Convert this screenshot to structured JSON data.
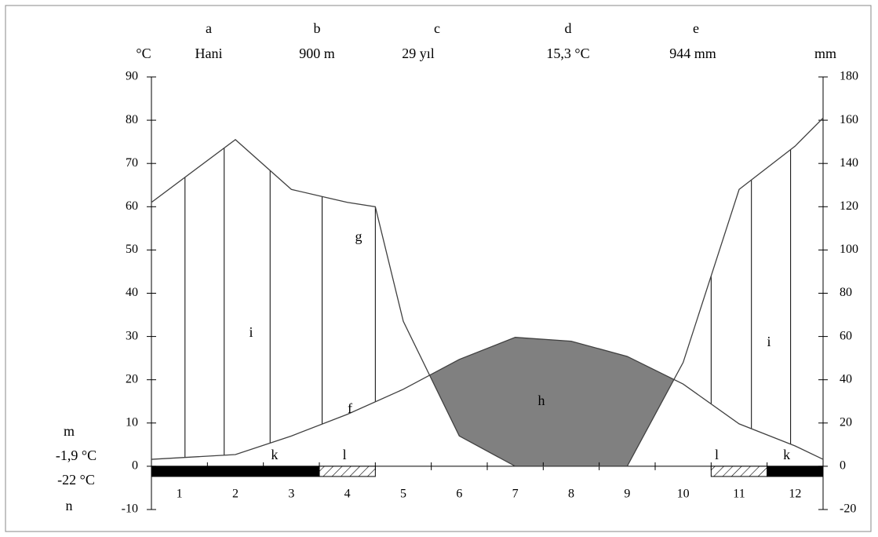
{
  "chart_data": {
    "type": "climate",
    "header": {
      "letters": [
        "a",
        "b",
        "c",
        "d",
        "e"
      ],
      "values": [
        "Hani",
        "900 m",
        "29 yıl",
        "15,3 °C",
        "944 mm"
      ]
    },
    "ylabel": "°C",
    "y2label": "mm",
    "xlim": [
      0.5,
      12.5
    ],
    "xticks": [
      1,
      2,
      3,
      4,
      5,
      6,
      7,
      8,
      9,
      10,
      11,
      12
    ],
    "ylim": [
      -10,
      90
    ],
    "yticks": [
      90,
      80,
      70,
      60,
      50,
      40,
      30,
      20,
      10,
      0,
      -10
    ],
    "y2lim": [
      -20,
      180
    ],
    "y2ticks": [
      180,
      160,
      140,
      120,
      100,
      80,
      60,
      40,
      20,
      0,
      -20
    ],
    "series": [
      {
        "name": "f",
        "color": "#404040",
        "x": [
          0.5,
          2,
          3,
          4,
          5,
          6,
          7,
          8,
          9,
          10,
          11,
          12,
          12.5
        ],
        "values": [
          1.6,
          2.7,
          7.0,
          12.0,
          17.8,
          24.7,
          29.8,
          28.9,
          25.4,
          19.0,
          9.8,
          4.7,
          1.6
        ]
      },
      {
        "name": "g",
        "color": "#404040",
        "axis": "y2",
        "x": [
          0.5,
          2,
          3,
          4,
          4.5,
          5,
          6,
          7,
          8,
          9,
          10,
          11,
          12,
          12.5
        ],
        "values": [
          122,
          151,
          128,
          122,
          120,
          67,
          14,
          0,
          0,
          0,
          48,
          128,
          148,
          161
        ]
      }
    ],
    "area_labels": [
      "h",
      "i",
      "i"
    ],
    "side_labels": [
      "m",
      "-1,9 °C",
      "-22 °C",
      "n"
    ],
    "periods": [
      {
        "name": "k",
        "from": 0.5,
        "to": 3.5,
        "fill": "solid"
      },
      {
        "name": "l",
        "from": 3.5,
        "to": 4.5,
        "fill": "hatched"
      },
      {
        "name": "l",
        "from": 10.5,
        "to": 11.5,
        "fill": "hatched"
      },
      {
        "name": "k",
        "from": 11.5,
        "to": 12.5,
        "fill": "solid"
      }
    ]
  }
}
